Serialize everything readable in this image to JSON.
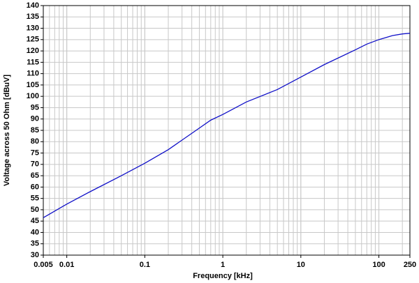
{
  "chart_data": {
    "type": "line",
    "xlabel": "Frequency [kHz]",
    "ylabel": "Voltage across 50 Ohm [dBuV]",
    "x": [
      0.005,
      0.01,
      0.02,
      0.05,
      0.1,
      0.2,
      0.5,
      0.7,
      1,
      2,
      5,
      10,
      20,
      50,
      70,
      100,
      150,
      200,
      250
    ],
    "series": [
      {
        "color": "#1010c8",
        "values": [
          46.5,
          52.5,
          58,
          65,
          70.5,
          76.5,
          86,
          89.5,
          92,
          97.5,
          103,
          108.5,
          114,
          120.5,
          123,
          125,
          126.8,
          127.5,
          127.8
        ]
      }
    ],
    "xscale": "log",
    "xlim": [
      0.005,
      250
    ],
    "xticks": [
      0.005,
      0.01,
      0.1,
      1,
      10,
      100,
      250
    ],
    "ylim": [
      30,
      140
    ],
    "yticks": [
      30,
      35,
      40,
      45,
      50,
      55,
      60,
      65,
      70,
      75,
      80,
      85,
      90,
      95,
      100,
      105,
      110,
      115,
      120,
      125,
      130,
      135,
      140
    ],
    "grid": true,
    "minor_grid": true
  }
}
